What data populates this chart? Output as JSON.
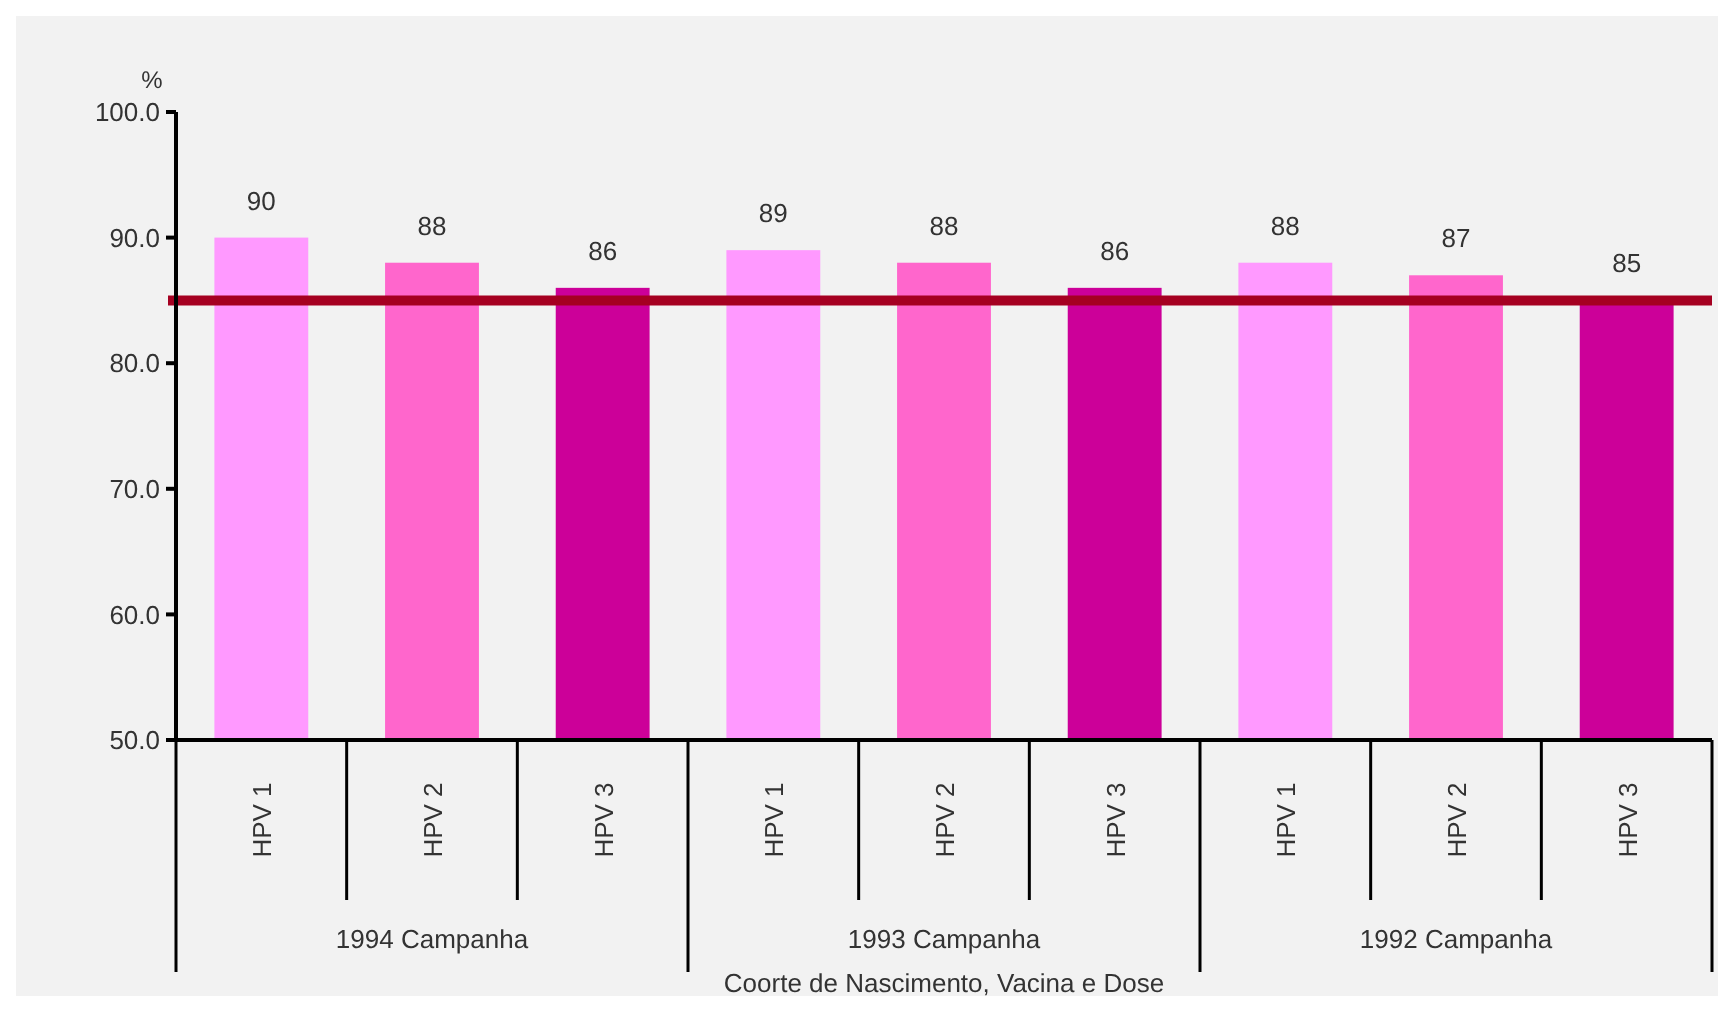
{
  "chart_data": {
    "type": "bar",
    "ylabel": "%",
    "xlabel": "Coorte de Nascimento, Vacina e Dose",
    "categories": [
      "HPV 1",
      "HPV 2",
      "HPV 3",
      "HPV 1",
      "HPV 2",
      "HPV 3",
      "HPV 1",
      "HPV 2",
      "HPV 3"
    ],
    "values": [
      90,
      88,
      86,
      89,
      88,
      86,
      88,
      87,
      85
    ],
    "colors": [
      "#ff99ff",
      "#ff66cc",
      "#cc0099",
      "#ff99ff",
      "#ff66cc",
      "#cc0099",
      "#ff99ff",
      "#ff66cc",
      "#cc0099"
    ],
    "data_labels": true,
    "ylim": [
      50,
      100
    ],
    "yticks": [
      {
        "value": 50,
        "label": "50.0"
      },
      {
        "value": 60,
        "label": "60.0"
      },
      {
        "value": 70,
        "label": "70.0"
      },
      {
        "value": 80,
        "label": "80.0"
      },
      {
        "value": 90,
        "label": "90.0"
      },
      {
        "value": 100,
        "label": "100.0"
      }
    ],
    "ref_lines": [
      {
        "axis": "y",
        "value": 85,
        "color": "#a50021"
      }
    ],
    "annotations": [
      "1994 Campanha",
      "1993 Campanha",
      "1992 Campanha"
    ],
    "grid": false
  }
}
